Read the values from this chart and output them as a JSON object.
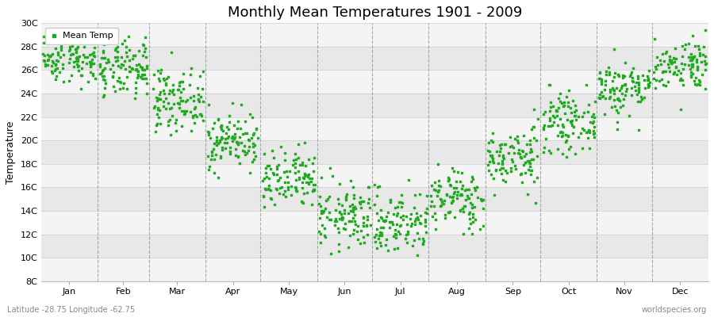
{
  "title": "Monthly Mean Temperatures 1901 - 2009",
  "ylabel": "Temperature",
  "bottom_left_label": "Latitude -28.75 Longitude -62.75",
  "bottom_right_label": "worldspecies.org",
  "legend_label": "Mean Temp",
  "dot_color": "#22aa22",
  "background_color": "#ffffff",
  "plot_bg_color": "#e8e8e8",
  "alt_band_color": "#f4f4f4",
  "grid_color": "#888888",
  "ytick_labels": [
    "8C",
    "10C",
    "12C",
    "14C",
    "16C",
    "18C",
    "20C",
    "22C",
    "24C",
    "26C",
    "28C",
    "30C"
  ],
  "ytick_values": [
    8,
    10,
    12,
    14,
    16,
    18,
    20,
    22,
    24,
    26,
    28,
    30
  ],
  "ylim": [
    8,
    30
  ],
  "month_names": [
    "Jan",
    "Feb",
    "Mar",
    "Apr",
    "May",
    "Jun",
    "Jul",
    "Aug",
    "Sep",
    "Oct",
    "Nov",
    "Dec"
  ],
  "years": 109,
  "monthly_means": [
    27.0,
    26.0,
    23.5,
    20.0,
    16.5,
    13.5,
    13.0,
    15.0,
    18.5,
    21.5,
    24.5,
    26.5
  ],
  "monthly_stds": [
    1.0,
    1.2,
    1.3,
    1.2,
    1.3,
    1.4,
    1.4,
    1.3,
    1.3,
    1.2,
    1.2,
    1.1
  ],
  "title_fontsize": 13,
  "label_fontsize": 9,
  "tick_fontsize": 8,
  "legend_fontsize": 8,
  "dot_size": 3
}
